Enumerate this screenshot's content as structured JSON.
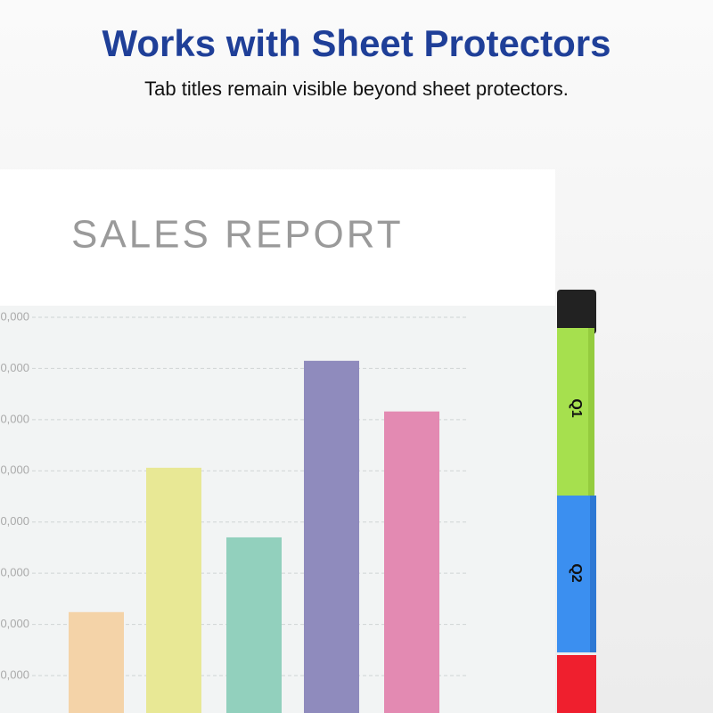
{
  "header": {
    "title": "Works with Sheet Protectors",
    "subtitle": "Tab titles remain visible beyond sheet protectors."
  },
  "report": {
    "title": "SALES REPORT",
    "chart_data": {
      "type": "bar",
      "values": [
        22400,
        50600,
        37000,
        71500,
        61600
      ],
      "colors": [
        "#f4d3a8",
        "#e8e895",
        "#92d0bd",
        "#8f8bbd",
        "#e38ab2"
      ],
      "ylim": [
        0,
        80000
      ],
      "yticks": [
        {
          "value": 80000,
          "label": "0,000"
        },
        {
          "value": 70000,
          "label": "0,000"
        },
        {
          "value": 60000,
          "label": "0,000"
        },
        {
          "value": 50000,
          "label": "0,000"
        },
        {
          "value": 40000,
          "label": "0,000"
        },
        {
          "value": 30000,
          "label": "0,000"
        },
        {
          "value": 20000,
          "label": "0,000"
        },
        {
          "value": 10000,
          "label": "0,000"
        }
      ],
      "grid": true
    }
  },
  "tabs": [
    {
      "label": "Q1"
    },
    {
      "label": "Q2"
    }
  ]
}
